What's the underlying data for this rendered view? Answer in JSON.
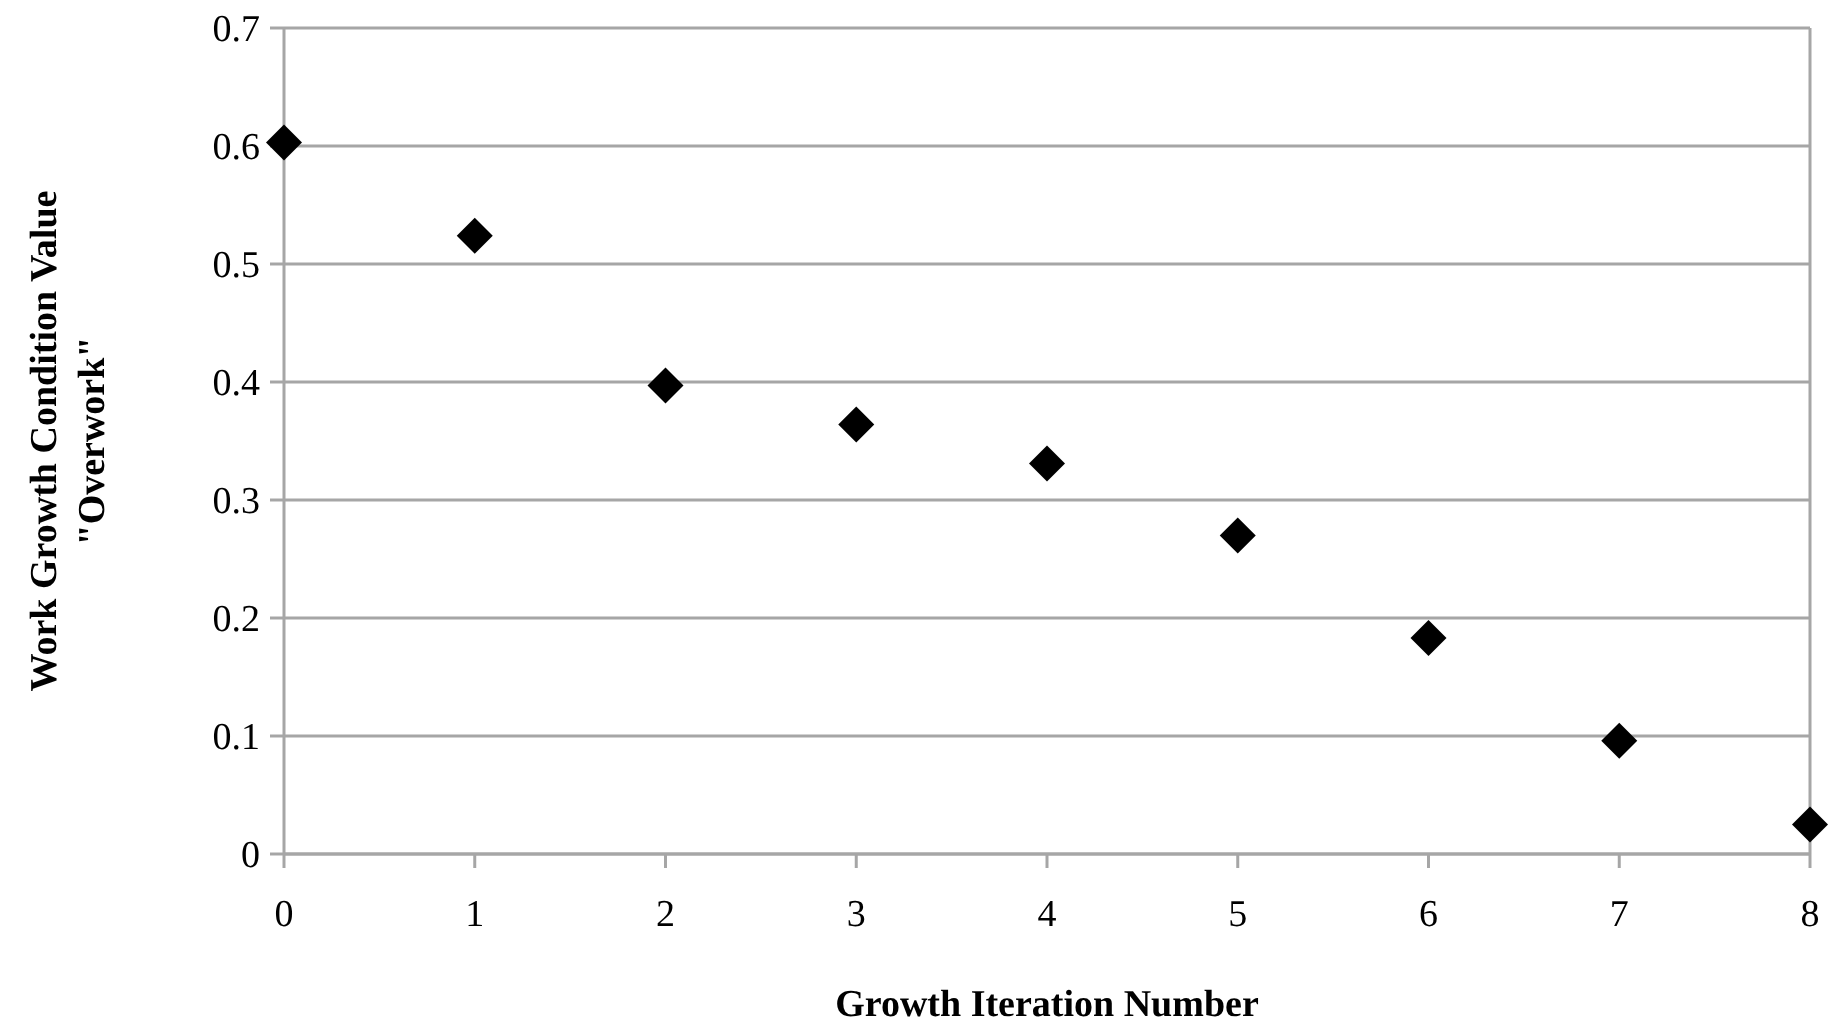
{
  "chart_data": {
    "type": "scatter",
    "xlabel": "Growth Iteration Number",
    "ylabel": "Work Growth Condition Value\n\"Overwork\"",
    "x": [
      0,
      1,
      2,
      3,
      4,
      5,
      6,
      7,
      8
    ],
    "values": [
      0.603,
      0.524,
      0.397,
      0.364,
      0.331,
      0.27,
      0.183,
      0.096,
      0.025
    ],
    "color": "#000000",
    "marker": "diamond",
    "grid": "y",
    "xlim": [
      0,
      8
    ],
    "xticks": [
      0,
      1,
      2,
      3,
      4,
      5,
      6,
      7,
      8
    ],
    "ylim": [
      0,
      0.7
    ],
    "yticks": [
      0,
      0.1,
      0.2,
      0.3,
      0.4,
      0.5,
      0.6,
      0.7
    ]
  }
}
